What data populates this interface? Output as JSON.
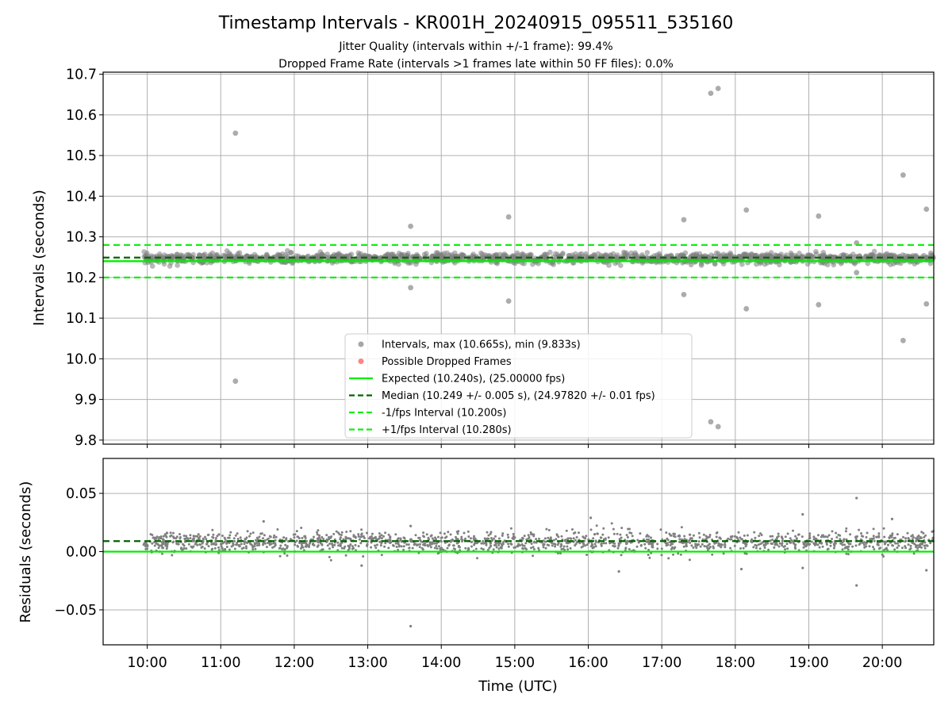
{
  "colors": {
    "interval_points": "#808080",
    "dropped_points": "#ff5050",
    "expected_line": "#00ee00",
    "median_line": "#006400",
    "bounds_line": "#11ee11",
    "grid": "#b0b0b0",
    "axes": "#000000"
  },
  "chart_data": {
    "type": "scatter",
    "title": "Timestamp Intervals - KR001H_20240915_095511_535160",
    "subtitle_lines": [
      "Jitter Quality (intervals within +/-1 frame): 99.4%",
      "Dropped Frame Rate (intervals >1 frames late within 50 FF files): 0.0%"
    ],
    "xlabel": "Time (UTC)",
    "x_ticks": [
      "10:00",
      "11:00",
      "12:00",
      "13:00",
      "14:00",
      "15:00",
      "16:00",
      "17:00",
      "18:00",
      "19:00",
      "20:00"
    ],
    "xlim": [
      "09:24",
      "20:42"
    ],
    "grid": true,
    "top_panel": {
      "ylabel": "Intervals (seconds)",
      "ylim": [
        9.79,
        10.705
      ],
      "y_ticks": [
        "9.8",
        "9.9",
        "10.0",
        "10.1",
        "10.2",
        "10.3",
        "10.4",
        "10.5",
        "10.6",
        "10.7"
      ],
      "reference_lines": [
        {
          "name": "Expected",
          "value": 10.24,
          "style": "solid"
        },
        {
          "name": "Median",
          "value": 10.249,
          "style": "dashed"
        },
        {
          "name": "-1/fps Interval",
          "value": 10.2,
          "style": "dashed"
        },
        {
          "name": "+1/fps Interval",
          "value": 10.28,
          "style": "dashed"
        }
      ],
      "interval_band": {
        "x_start": "09:57",
        "x_end": "20:42",
        "center": 10.247,
        "spread": 0.012
      },
      "outliers": [
        {
          "x": "11:12",
          "y": 10.555
        },
        {
          "x": "11:12",
          "y": 9.945
        },
        {
          "x": "13:35",
          "y": 10.326
        },
        {
          "x": "13:35",
          "y": 10.175
        },
        {
          "x": "14:55",
          "y": 10.349
        },
        {
          "x": "14:55",
          "y": 10.142
        },
        {
          "x": "17:18",
          "y": 10.342
        },
        {
          "x": "17:18",
          "y": 10.158
        },
        {
          "x": "17:40",
          "y": 10.653
        },
        {
          "x": "17:40",
          "y": 9.845
        },
        {
          "x": "17:46",
          "y": 10.665
        },
        {
          "x": "17:46",
          "y": 9.833
        },
        {
          "x": "18:09",
          "y": 10.366
        },
        {
          "x": "18:09",
          "y": 10.123
        },
        {
          "x": "19:08",
          "y": 10.351
        },
        {
          "x": "19:08",
          "y": 10.133
        },
        {
          "x": "19:39",
          "y": 10.285
        },
        {
          "x": "19:39",
          "y": 10.212
        },
        {
          "x": "20:17",
          "y": 10.452
        },
        {
          "x": "20:17",
          "y": 10.045
        },
        {
          "x": "20:36",
          "y": 10.368
        },
        {
          "x": "20:36",
          "y": 10.135
        }
      ],
      "legend": {
        "placement": "lower-center",
        "entries": [
          {
            "label": "Intervals, max (10.665s), min (9.833s)",
            "kind": "marker",
            "color_key": "interval_points"
          },
          {
            "label": "Possible Dropped Frames",
            "kind": "marker",
            "color_key": "dropped_points"
          },
          {
            "label": "Expected (10.240s), (25.00000 fps)",
            "kind": "solid",
            "color_key": "expected_line"
          },
          {
            "label": "Median (10.249 +/- 0.005 s), (24.97820 +/- 0.01 fps)",
            "kind": "dashed",
            "color_key": "median_line"
          },
          {
            "label": "-1/fps Interval (10.200s)",
            "kind": "dashed",
            "color_key": "bounds_line"
          },
          {
            "label": "+1/fps Interval (10.280s)",
            "kind": "dashed",
            "color_key": "bounds_line"
          }
        ]
      }
    },
    "bottom_panel": {
      "ylabel": "Residuals (seconds)",
      "ylim": [
        -0.08,
        0.08
      ],
      "y_ticks": [
        "0.05",
        "0.00",
        "−0.05"
      ],
      "y_tick_values": [
        0.05,
        0.0,
        -0.05
      ],
      "reference_lines": [
        {
          "name": "Expected",
          "value": 0.0,
          "style": "solid"
        },
        {
          "name": "Median",
          "value": 0.009,
          "style": "dashed"
        }
      ],
      "residual_band": {
        "x_start": "09:57",
        "x_end": "20:42",
        "center": 0.008,
        "spread": 0.007
      },
      "outliers": [
        {
          "x": "13:35",
          "y": -0.064
        },
        {
          "x": "19:39",
          "y": 0.046
        },
        {
          "x": "19:39",
          "y": -0.029
        },
        {
          "x": "18:55",
          "y": 0.032
        },
        {
          "x": "16:02",
          "y": 0.029
        },
        {
          "x": "16:25",
          "y": -0.017
        },
        {
          "x": "20:08",
          "y": 0.028
        },
        {
          "x": "11:35",
          "y": 0.026
        },
        {
          "x": "12:55",
          "y": -0.012
        },
        {
          "x": "13:35",
          "y": 0.022
        },
        {
          "x": "20:36",
          "y": -0.016
        },
        {
          "x": "18:05",
          "y": -0.015
        },
        {
          "x": "18:55",
          "y": -0.014
        }
      ]
    }
  }
}
